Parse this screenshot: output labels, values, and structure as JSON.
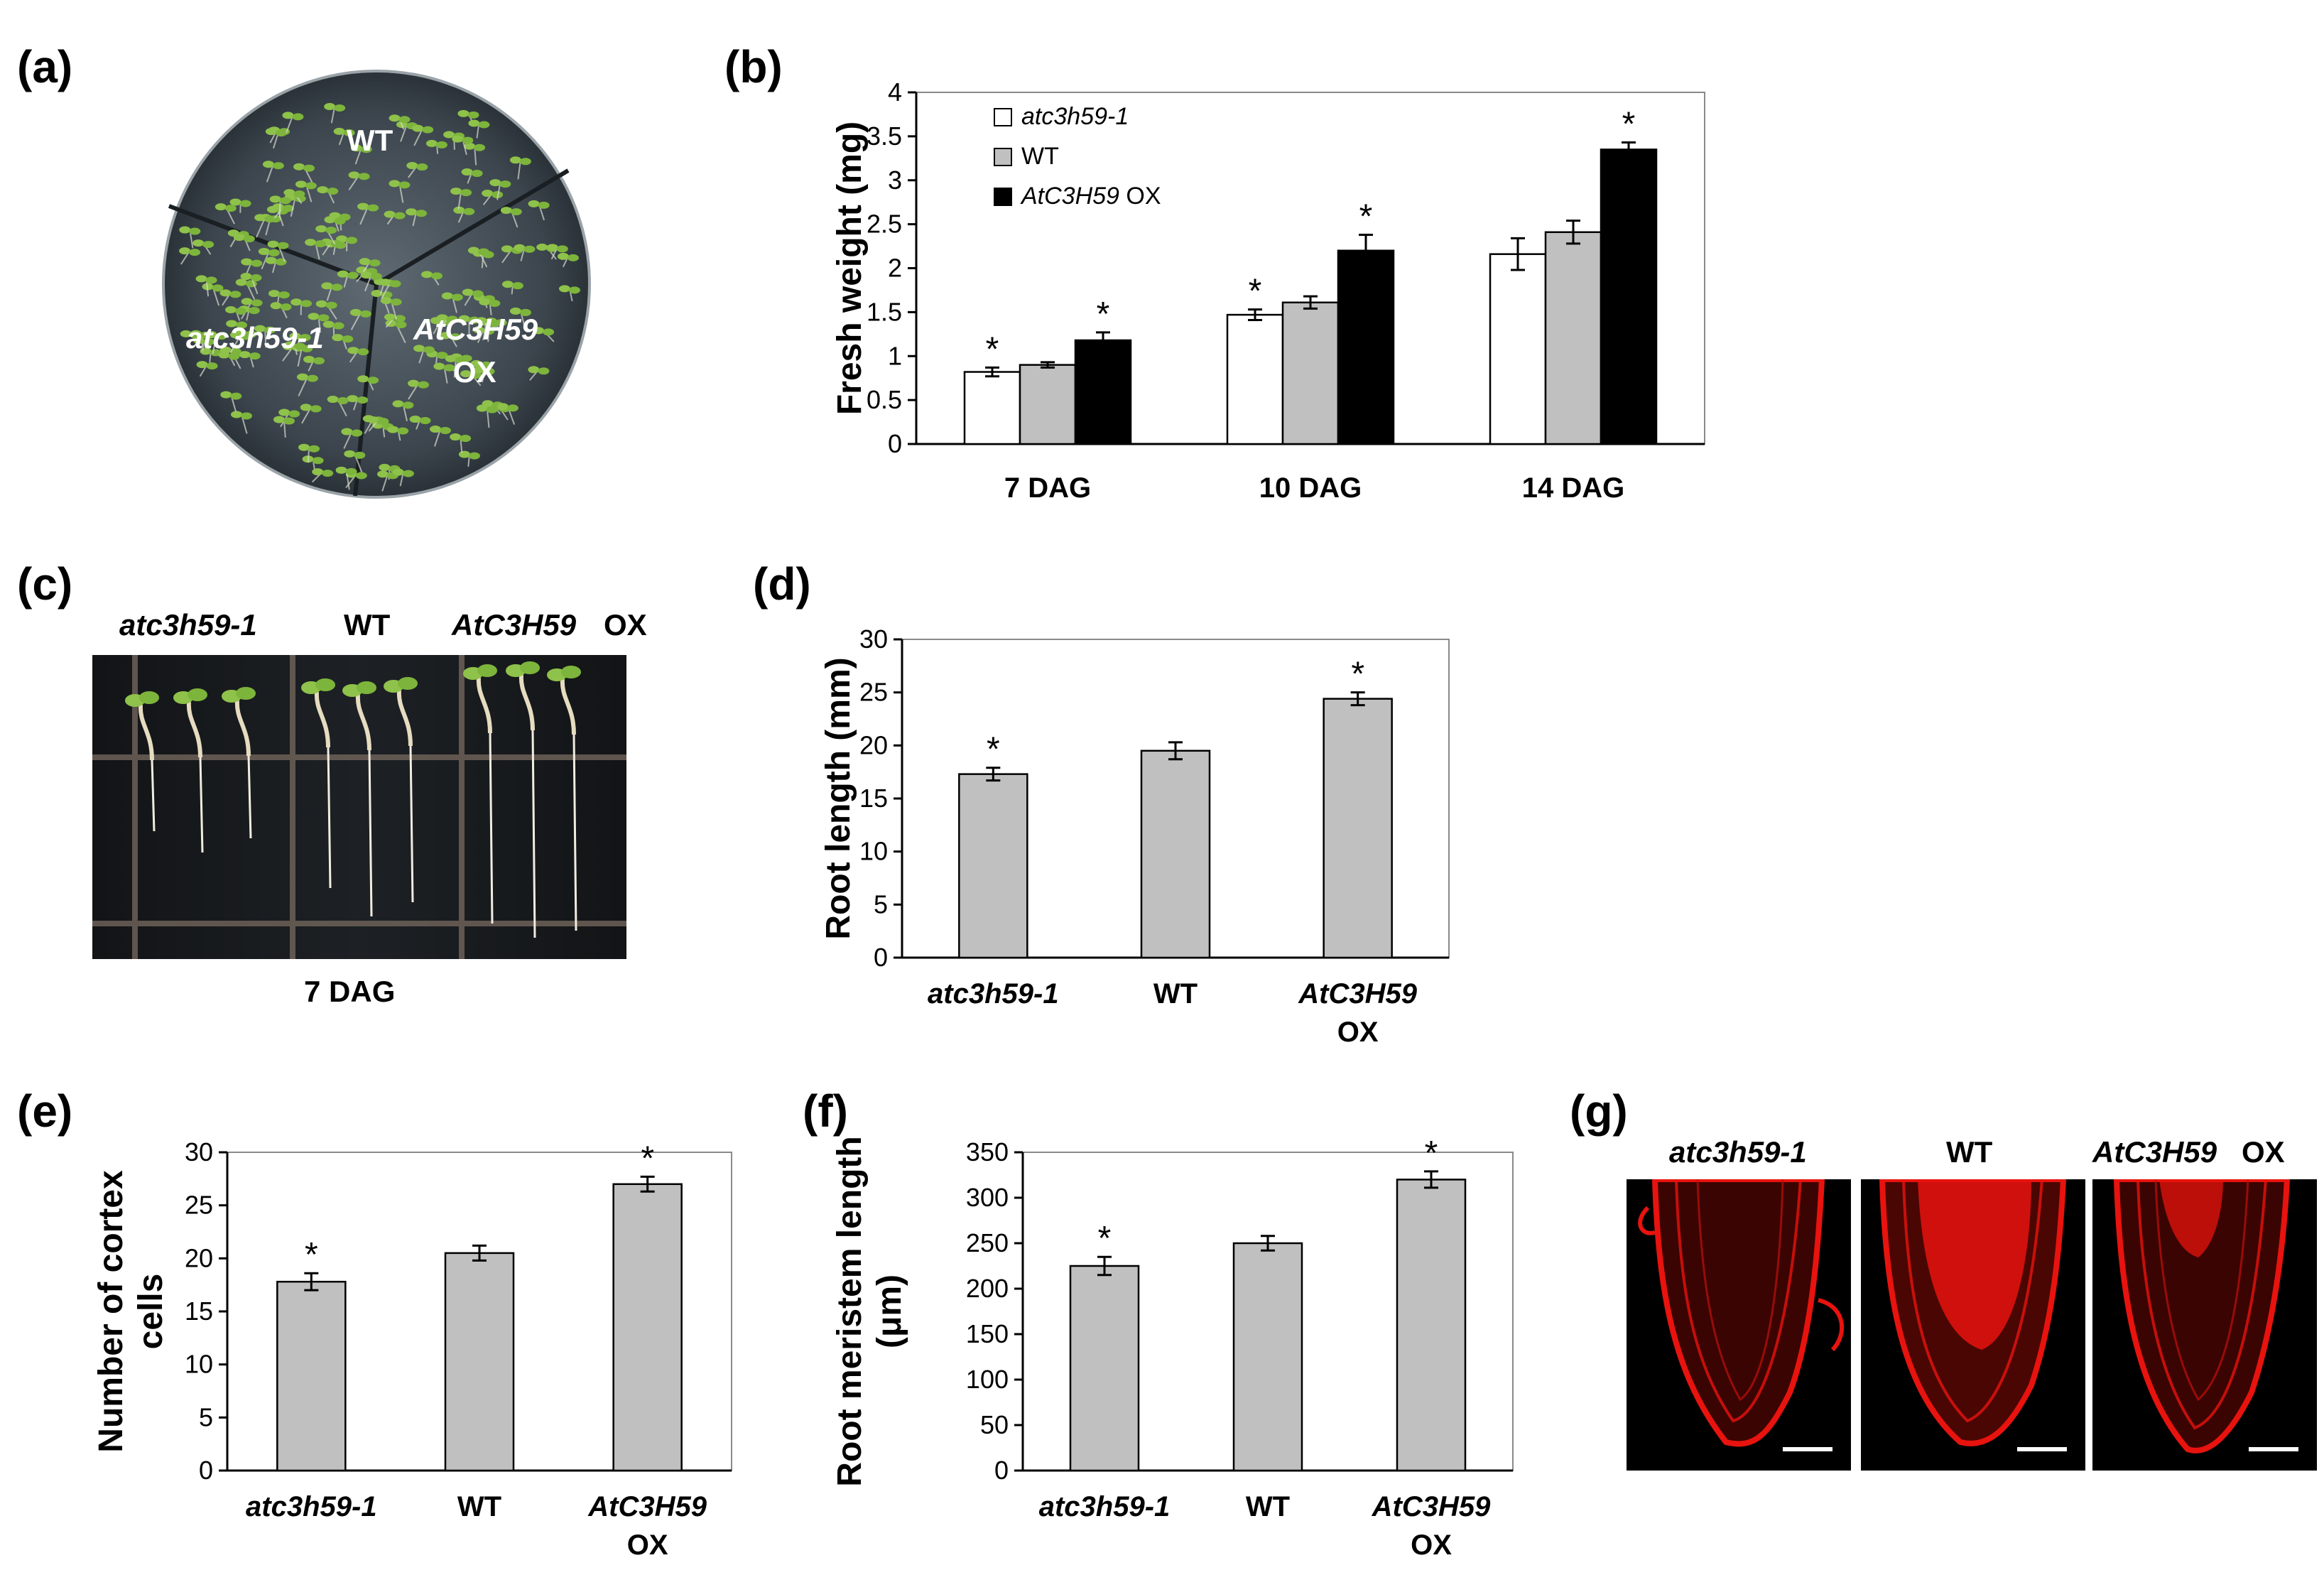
{
  "panels": {
    "a": "(a)",
    "b": "(b)",
    "c": "(c)",
    "d": "(d)",
    "e": "(e)",
    "f": "(f)",
    "g": "(g)"
  },
  "photo_a": {
    "wt": "WT",
    "mutant": "atc3h59-1",
    "ox_line1": "AtC3H59",
    "ox_line2": "OX"
  },
  "photo_c": {
    "mutant": "atc3h59-1",
    "wt": "WT",
    "ox_name": "AtC3H59",
    "ox_suffix": "OX",
    "caption": "7 DAG"
  },
  "photo_g": {
    "mutant": "atc3h59-1",
    "wt": "WT",
    "ox_name": "AtC3H59",
    "ox_suffix": "OX"
  },
  "colors": {
    "mutant": "#ffffff",
    "wt": "#c0c0c0",
    "ox": "#000000",
    "single": "#c0c0c0",
    "root_red": "#e8130e"
  },
  "chart_data": [
    {
      "id": "b",
      "type": "bar",
      "ylabel": "Fresh weight (mg)",
      "ylim": [
        0,
        4
      ],
      "yticks": [
        "0",
        "0.5",
        "1",
        "1.5",
        "2",
        "2.5",
        "3",
        "3.5",
        "4"
      ],
      "categories": [
        "7 DAG",
        "10 DAG",
        "14 DAG"
      ],
      "legend": [
        {
          "name": "atc3h59-1",
          "suffix": "",
          "italic": true
        },
        {
          "name": "WT",
          "suffix": "",
          "italic": false
        },
        {
          "name": "AtC3H59",
          "suffix": " OX",
          "italic": true
        }
      ],
      "legend_position": "top-left",
      "series": [
        {
          "name": "atc3h59-1",
          "values": [
            0.82,
            1.47,
            2.16
          ],
          "errors": [
            0.05,
            0.06,
            0.18
          ],
          "stars": [
            true,
            true,
            false
          ]
        },
        {
          "name": "WT",
          "values": [
            0.9,
            1.61,
            2.41
          ],
          "errors": [
            0.03,
            0.07,
            0.13
          ],
          "stars": [
            false,
            false,
            false
          ]
        },
        {
          "name": "AtC3H59 OX",
          "values": [
            1.18,
            2.2,
            3.35
          ],
          "errors": [
            0.09,
            0.18,
            0.08
          ],
          "stars": [
            true,
            true,
            true
          ]
        }
      ],
      "star_symbol": "*"
    },
    {
      "id": "d",
      "type": "bar",
      "ylabel": "Root length (mm)",
      "ylim": [
        0,
        30
      ],
      "yticks": [
        "0",
        "5",
        "10",
        "15",
        "20",
        "25",
        "30"
      ],
      "categories": [
        {
          "line1": "atc3h59-1",
          "line1_italic": true,
          "line2": ""
        },
        {
          "line1": "WT",
          "line1_italic": false,
          "line2": ""
        },
        {
          "line1": "AtC3H59",
          "line1_italic": true,
          "line2": "OX"
        }
      ],
      "values": [
        17.3,
        19.5,
        24.4
      ],
      "errors": [
        0.6,
        0.8,
        0.6
      ],
      "stars": [
        true,
        false,
        true
      ],
      "star_symbol": "*"
    },
    {
      "id": "e",
      "type": "bar",
      "ylabel_line1": "Number of cortex",
      "ylabel_line2": "cells",
      "ylim": [
        0,
        30
      ],
      "yticks": [
        "0",
        "5",
        "10",
        "15",
        "20",
        "25",
        "30"
      ],
      "categories": [
        {
          "line1": "atc3h59-1",
          "line1_italic": true,
          "line2": ""
        },
        {
          "line1": "WT",
          "line1_italic": false,
          "line2": ""
        },
        {
          "line1": "AtC3H59",
          "line1_italic": true,
          "line2": "OX"
        }
      ],
      "values": [
        17.8,
        20.5,
        27.0
      ],
      "errors": [
        0.8,
        0.7,
        0.7
      ],
      "stars": [
        true,
        false,
        true
      ],
      "star_symbol": "*"
    },
    {
      "id": "f",
      "type": "bar",
      "ylabel_line1": "Root meristem length",
      "ylabel_line2": "(μm)",
      "ylim": [
        0,
        350
      ],
      "yticks": [
        "0",
        "50",
        "100",
        "150",
        "200",
        "250",
        "300",
        "350"
      ],
      "categories": [
        {
          "line1": "atc3h59-1",
          "line1_italic": true,
          "line2": ""
        },
        {
          "line1": "WT",
          "line1_italic": false,
          "line2": ""
        },
        {
          "line1": "AtC3H59",
          "line1_italic": true,
          "line2": "OX"
        }
      ],
      "values": [
        225,
        250,
        320
      ],
      "errors": [
        10,
        8,
        9
      ],
      "stars": [
        true,
        false,
        true
      ],
      "star_symbol": "*"
    }
  ]
}
